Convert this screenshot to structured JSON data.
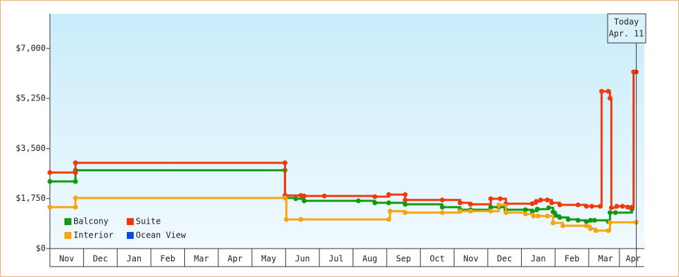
{
  "chart_data": {
    "type": "step",
    "xlim": [
      0,
      17.65
    ],
    "ylim": [
      0,
      8210
    ],
    "yticks": [
      {
        "value": 0,
        "label": "$0"
      },
      {
        "value": 1750,
        "label": "$1,750"
      },
      {
        "value": 3500,
        "label": "$3,500"
      },
      {
        "value": 5250,
        "label": "$5,250"
      },
      {
        "value": 7000,
        "label": "$7,000"
      }
    ],
    "xticks": [
      {
        "value": 0.5,
        "label": "Nov"
      },
      {
        "value": 1.5,
        "label": "Dec"
      },
      {
        "value": 2.5,
        "label": "Jan"
      },
      {
        "value": 3.5,
        "label": "Feb"
      },
      {
        "value": 4.5,
        "label": "Mar"
      },
      {
        "value": 5.5,
        "label": "Apr"
      },
      {
        "value": 6.5,
        "label": "May"
      },
      {
        "value": 7.5,
        "label": "Jun"
      },
      {
        "value": 8.5,
        "label": "Jul"
      },
      {
        "value": 9.5,
        "label": "Aug"
      },
      {
        "value": 10.5,
        "label": "Sep"
      },
      {
        "value": 11.5,
        "label": "Oct"
      },
      {
        "value": 12.5,
        "label": "Nov"
      },
      {
        "value": 13.5,
        "label": "Dec"
      },
      {
        "value": 14.5,
        "label": "Jan"
      },
      {
        "value": 15.5,
        "label": "Feb"
      },
      {
        "value": 16.5,
        "label": "Mar"
      },
      {
        "value": 17.32,
        "label": "Apr"
      }
    ],
    "today": {
      "x": 17.41,
      "label": [
        "Today",
        "Apr. 11"
      ]
    },
    "series": [
      {
        "name": "Balcony",
        "color": "#119911",
        "x": [
          0,
          0.76,
          0.76,
          6.98,
          6.98,
          7.3,
          7.55,
          9.16,
          9.65,
          10.06,
          10.55,
          11.65,
          12.18,
          12.49,
          13.09,
          13.33,
          13.54,
          14.12,
          14.32,
          14.47,
          14.81,
          14.94,
          15.02,
          15.14,
          15.39,
          15.68,
          15.93,
          16.05,
          16.17,
          16.58,
          16.63,
          16.79,
          17.28
        ],
        "values": [
          2350,
          2350,
          2740,
          2740,
          1770,
          1745,
          1670,
          1670,
          1600,
          1600,
          1550,
          1450,
          1360,
          1360,
          1450,
          1450,
          1360,
          1360,
          1310,
          1380,
          1430,
          1280,
          1160,
          1090,
          1020,
          990,
          945,
          990,
          990,
          945,
          1260,
          1260,
          1380
        ]
      },
      {
        "name": "Suite",
        "color": "#ee3a0a",
        "x": [
          0,
          0.76,
          0.76,
          6.98,
          6.98,
          7.45,
          7.55,
          8.15,
          9.65,
          10.06,
          10.55,
          10.55,
          11.65,
          12.18,
          12.49,
          13.09,
          13.37,
          13.54,
          14.32,
          14.44,
          14.57,
          14.77,
          14.9,
          15.14,
          15.68,
          15.93,
          16.09,
          16.34,
          16.38,
          16.58,
          16.63,
          16.67,
          16.83,
          17,
          17.16,
          17.28,
          17.33,
          17.41
        ],
        "values": [
          2660,
          2660,
          3000,
          3000,
          1860,
          1860,
          1840,
          1840,
          1815,
          1890,
          1890,
          1700,
          1700,
          1600,
          1550,
          1745,
          1745,
          1570,
          1570,
          1650,
          1700,
          1700,
          1600,
          1530,
          1530,
          1480,
          1480,
          1480,
          5500,
          5500,
          5260,
          1430,
          1480,
          1480,
          1450,
          1450,
          6180,
          6180
        ]
      },
      {
        "name": "Interior",
        "color": "#f5a511",
        "x": [
          0,
          0.76,
          0.76,
          6.98,
          7.02,
          7.45,
          10.06,
          10.1,
          10.55,
          11.65,
          12.18,
          12.49,
          13.09,
          13.33,
          13.54,
          14.12,
          14.36,
          14.49,
          14.77,
          14.94,
          15.23,
          15.93,
          16.05,
          16.21,
          16.58,
          16.63,
          17.41
        ],
        "values": [
          1450,
          1450,
          1770,
          1770,
          1020,
          1020,
          1020,
          1310,
          1260,
          1260,
          1310,
          1310,
          1310,
          1530,
          1260,
          1210,
          1140,
          1140,
          1140,
          900,
          800,
          800,
          700,
          630,
          630,
          920,
          920
        ]
      },
      {
        "name": "Ocean View",
        "color": "#1144ee",
        "x": [],
        "values": []
      }
    ]
  }
}
